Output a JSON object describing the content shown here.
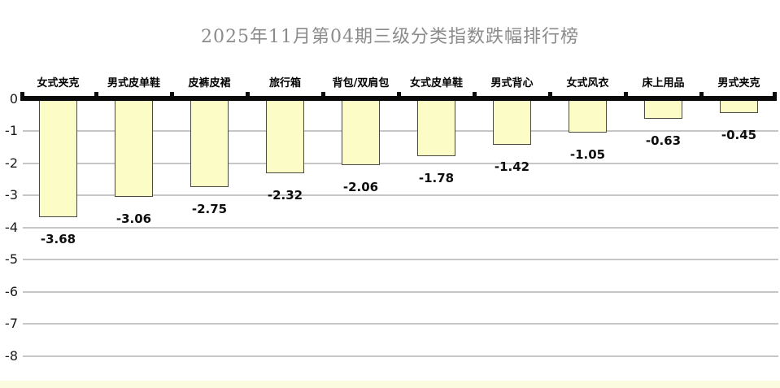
{
  "title": "2025年11月第04期三级分类指数跌幅排行榜",
  "colors": {
    "background": "#ffffff",
    "title": "#8b8b8b",
    "bar_fill": "#fcfcc6",
    "bar_border": "#4a4a42",
    "grid": "#c6c6c6",
    "axis": "#0a0a0a",
    "bottom_strip": "#fbfbe0",
    "text": "#000000"
  },
  "chart_data": {
    "type": "bar",
    "title": "2025年11月第04期三级分类指数跌幅排行榜",
    "orientation": "vertical",
    "categories": [
      "女式夹克",
      "男式皮单鞋",
      "皮裤皮裙",
      "旅行箱",
      "背包/双肩包",
      "女式皮单鞋",
      "男式背心",
      "女式风衣",
      "床上用品",
      "男式夹克"
    ],
    "values": [
      -3.68,
      -3.06,
      -2.75,
      -2.32,
      -2.06,
      -1.78,
      -1.42,
      -1.05,
      -0.63,
      -0.45
    ],
    "value_labels": [
      "-3.68",
      "-3.06",
      "-2.75",
      "-2.32",
      "-2.06",
      "-1.78",
      "-1.42",
      "-1.05",
      "-0.63",
      "-0.45"
    ],
    "xlabel": "",
    "ylabel": "",
    "ylim": [
      -8,
      0
    ],
    "yticks": [
      0,
      -1,
      -2,
      -3,
      -4,
      -5,
      -6,
      -7,
      -8
    ],
    "grid": true,
    "legend_position": "none",
    "category_labels_position": "above-zero-line",
    "value_labels_position": "below-bars"
  }
}
